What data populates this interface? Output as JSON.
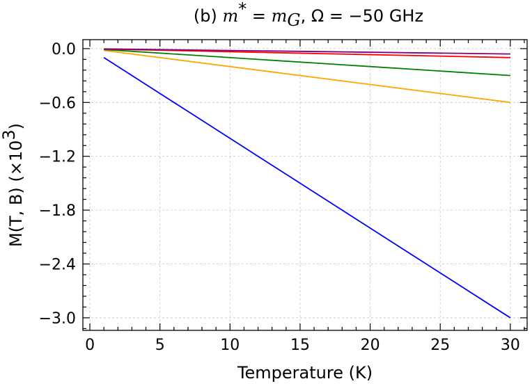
{
  "chart_data": {
    "type": "line",
    "title": {
      "prefix": "(b) ",
      "math_a": "m",
      "math_a_sup": "*",
      "middle": " = ",
      "math_b": "m",
      "math_b_sub": "G",
      "comma": ", ",
      "omega_part": "Ω = −50 GHz"
    },
    "xlabel": "Temperature (K)",
    "ylabel": {
      "main": "M(T, B) (×10",
      "sup": "3",
      "close": ")"
    },
    "xlim": [
      -0.5,
      31.2
    ],
    "ylim": [
      -3.14,
      0.1
    ],
    "xticks": [
      0,
      5,
      10,
      15,
      20,
      25,
      30
    ],
    "xtick_labels": [
      "0",
      "5",
      "10",
      "15",
      "20",
      "25",
      "30"
    ],
    "yticks": [
      0.0,
      -0.6,
      -1.2,
      -1.8,
      -2.4,
      -3.0
    ],
    "ytick_labels": [
      "0.0",
      "−0.6",
      "−1.2",
      "−1.8",
      "−2.4",
      "−3.0"
    ],
    "grid": true,
    "series": [
      {
        "name": "blue",
        "color": "#0000ff",
        "x": [
          1,
          30
        ],
        "y": [
          -0.1,
          -3.0
        ]
      },
      {
        "name": "orange",
        "color": "#ffa500",
        "x": [
          1,
          30
        ],
        "y": [
          -0.02,
          -0.6
        ]
      },
      {
        "name": "green",
        "color": "#008000",
        "x": [
          1,
          30
        ],
        "y": [
          -0.01,
          -0.3
        ]
      },
      {
        "name": "red",
        "color": "#ff0000",
        "x": [
          1,
          30
        ],
        "y": [
          -0.005,
          -0.1
        ]
      },
      {
        "name": "purple",
        "color": "#800080",
        "x": [
          1,
          30
        ],
        "y": [
          -0.003,
          -0.06
        ]
      }
    ]
  }
}
